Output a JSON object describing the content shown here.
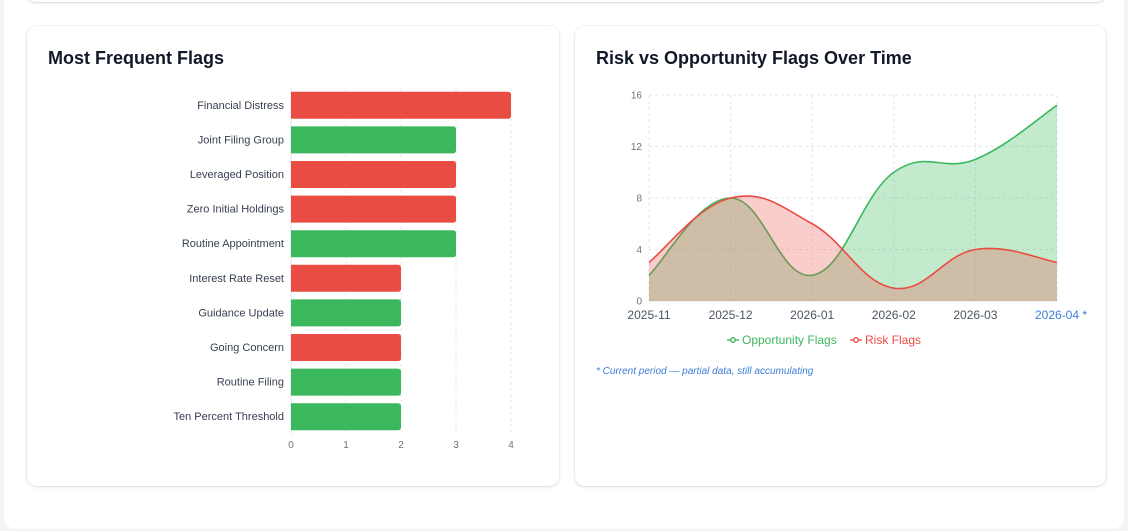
{
  "bar_panel": {
    "title": "Most Frequent Flags"
  },
  "line_panel": {
    "title": "Risk vs Opportunity Flags Over Time",
    "note": "* Current period — partial data, still accumulating"
  },
  "colors": {
    "risk": "#e84c43",
    "opportunity": "#3bb85d",
    "current_period": "#3b7dd8"
  },
  "chart_data": [
    {
      "type": "bar",
      "orientation": "horizontal",
      "title": "Most Frequent Flags",
      "categories": [
        "Financial Distress",
        "Joint Filing Group",
        "Leveraged Position",
        "Zero Initial Holdings",
        "Routine Appointment",
        "Interest Rate Reset",
        "Guidance Update",
        "Going Concern",
        "Routine Filing",
        "Ten Percent Threshold"
      ],
      "values": [
        4,
        3,
        3,
        3,
        3,
        2,
        2,
        2,
        2,
        2
      ],
      "bar_kind": [
        "risk",
        "opportunity",
        "risk",
        "risk",
        "opportunity",
        "risk",
        "opportunity",
        "risk",
        "opportunity",
        "opportunity"
      ],
      "xlim": [
        0,
        4
      ],
      "xticks": [
        0,
        1,
        2,
        3,
        4
      ],
      "grid": true
    },
    {
      "type": "area",
      "title": "Risk vs Opportunity Flags Over Time",
      "x": [
        "2025-11",
        "2025-12",
        "2026-01",
        "2026-02",
        "2026-03",
        "2026-04 *"
      ],
      "ylim": [
        0,
        16
      ],
      "yticks": [
        0,
        4,
        8,
        12,
        16
      ],
      "grid": true,
      "legend_position": "bottom",
      "series": [
        {
          "name": "Opportunity Flags",
          "kind": "opportunity",
          "values": [
            2,
            8,
            2,
            10,
            11,
            15.2
          ]
        },
        {
          "name": "Risk Flags",
          "kind": "risk",
          "values": [
            3,
            8,
            6,
            1,
            4,
            3
          ]
        }
      ]
    }
  ]
}
